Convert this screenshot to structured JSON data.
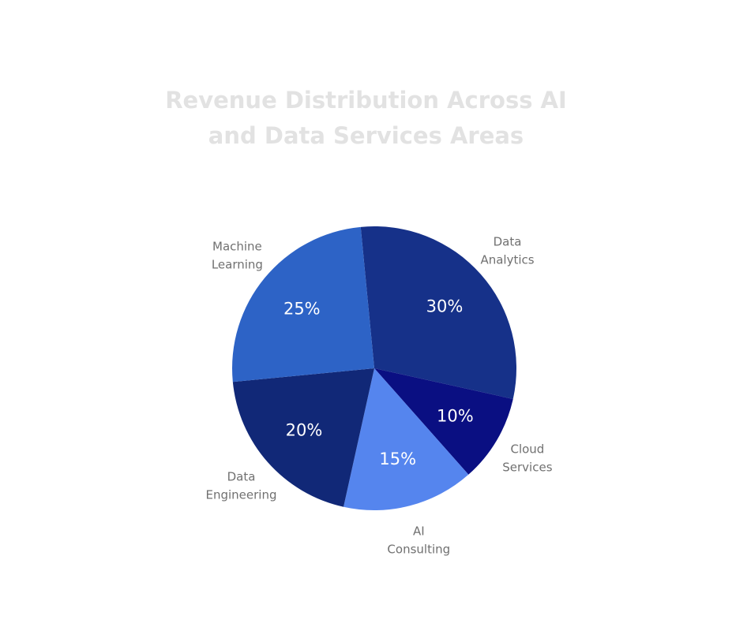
{
  "chart_data": {
    "type": "pie",
    "title": "Revenue Distribution Across AI and Data Services Areas",
    "title_lines": [
      "Revenue Distribution Across AI",
      "and Data Services Areas"
    ],
    "slices": [
      {
        "name": "Data Analytics",
        "label_lines": [
          "Data",
          "Analytics"
        ],
        "value": 30,
        "label": "30%",
        "color": "#163189"
      },
      {
        "name": "Cloud Services",
        "label_lines": [
          "Cloud",
          "Services"
        ],
        "value": 10,
        "label": "10%",
        "color": "#0a0f82"
      },
      {
        "name": "AI Consulting",
        "label_lines": [
          "AI",
          "Consulting"
        ],
        "value": 15,
        "label": "15%",
        "color": "#5585ee"
      },
      {
        "name": "Data Engineering",
        "label_lines": [
          "Data",
          "Engineering"
        ],
        "value": 20,
        "label": "20%",
        "color": "#112877"
      },
      {
        "name": "Machine Learning",
        "label_lines": [
          "Machine",
          "Learning"
        ],
        "value": 25,
        "label": "25%",
        "color": "#2d63c6"
      }
    ]
  }
}
